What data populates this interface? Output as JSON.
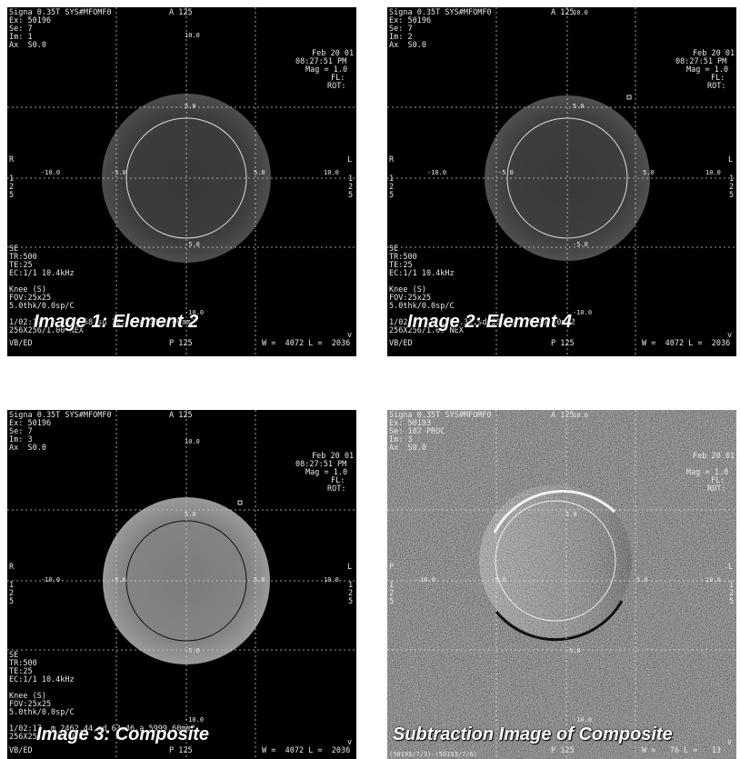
{
  "panels": [
    {
      "caption": "Image 1: Element 2",
      "line1": "Signa 0.35T SYS#MFOMF0",
      "exam": "Ex: 50196",
      "series": "Se: 7",
      "image_no": "Im: 1",
      "axial": "Ax  S0.0",
      "top_marker": "A 125",
      "date": "Feb 20 01",
      "time": "08:27:51 PM",
      "mag": "Mag = 1.0",
      "fl": "FL:",
      "rot": "ROT:",
      "left_marker": "R",
      "right_marker": "L",
      "seq": "SE",
      "tr": "TR:500",
      "te": "TE:25",
      "ec": "EC:1/1 10.4kHz",
      "coil": "Knee (S)",
      "fov": "FOV:25x25",
      "thk": "5.0thk/0.0sp/C",
      "roi": "1/02:17  m 1572.58,sd 32.80,a 5999.60mm2",
      "matrix": "256X256/1.00 NEX",
      "vb": "VB/ED",
      "bottom_marker": "P 125",
      "wl": "W =  4072 L =  2036",
      "scale_top": "10.0",
      "scale_inner_top": "5.0",
      "scale_left": "-10.0",
      "scale_left_inner": "-5.0",
      "scale_right_inner": "5.0",
      "scale_right": "10.0",
      "scale_bottom_inner": "-5.0",
      "scale_bottom": "-10.0",
      "side_left": "125",
      "side_right": "125",
      "v_mark": "v"
    },
    {
      "caption": "Image 2: Element 4",
      "line1": "Signa 0.35T SYS#MFOMF0",
      "exam": "Ex: 50196",
      "series": "Se: 7",
      "image_no": "Im: 2",
      "axial": "Ax  S0.0",
      "top_marker": "A 125",
      "date": "Feb 20 01",
      "time": "08:27:51 PM",
      "mag": "Mag = 1.0",
      "fl": "FL:",
      "rot": "ROT:",
      "left_marker": "R",
      "right_marker": "L",
      "seq": "SE",
      "tr": "TR:500",
      "te": "TE:25",
      "ec": "EC:1/1 10.4kHz",
      "coil": "Knee (S)",
      "fov": "FOV:25x25",
      "thk": "5.0thk/0.0sp/C",
      "roi": "1/02:17  m 1893.31,sd 28.18,a 5999.60mm2",
      "matrix": "256X256/1.00 NEX",
      "vb": "VB/ED",
      "bottom_marker": "P 125",
      "wl": "W =  4072 L =  2036",
      "scale_top": "10.0",
      "scale_inner_top": "5.0",
      "scale_left": "-10.0",
      "scale_left_inner": "-5.0",
      "scale_right_inner": "5.0",
      "scale_right": "10.0",
      "scale_bottom_inner": "-5.0",
      "scale_bottom": "-10.0",
      "side_left": "125",
      "side_right": "125",
      "v_mark": "v"
    },
    {
      "caption": "Image 3: Composite",
      "line1": "Signa 0.35T SYS#MFOMF0",
      "exam": "Ex: 50196",
      "series": "Se: 7",
      "image_no": "Im: 3",
      "axial": "Ax  S0.0",
      "top_marker": "A 125",
      "date": "Feb 20 01",
      "time": "08:27:51 PM",
      "mag": "Mag = 1.0",
      "fl": "FL:",
      "rot": "ROT:",
      "left_marker": "R",
      "right_marker": "L",
      "seq": "SE",
      "tr": "TR:500",
      "te": "TE:25",
      "ec": "EC:1/1 10.4kHz",
      "coil": "Knee (S)",
      "fov": "FOV:25x25",
      "thk": "5.0thk/0.0sp/C",
      "roi": "1/02:17  m 2462.44,sd 63.46,a 5999.60mm2",
      "matrix": "256X256/1.00 NEX",
      "vb": "VB/ED",
      "bottom_marker": "P 125",
      "wl": "W =  4072 L =  2036",
      "scale_top": "10.0",
      "scale_inner_top": "5.0",
      "scale_left": "-10.0",
      "scale_left_inner": "-5.0",
      "scale_right_inner": "5.0",
      "scale_right": "10.0",
      "scale_bottom_inner": "-5.0",
      "scale_bottom": "-10.0",
      "side_left": "125",
      "side_right": "125",
      "v_mark": "v"
    },
    {
      "caption": "Subtraction Image of Composite",
      "line1": "Signa 0.35T SYS#MFOMF0",
      "exam": "Ex: 50193",
      "series": "Se: 107 PROC",
      "image_no": "Im: 3",
      "axial": "Ax  S0.0",
      "top_marker": "A 125",
      "date": "Feb 20 01",
      "time": "",
      "mag": "Mag = 1.0",
      "fl": "FL:",
      "rot": "ROT:",
      "left_marker": "P",
      "right_marker": "L",
      "seq": "",
      "tr": "",
      "te": "",
      "ec": "",
      "coil": "",
      "fov": "",
      "thk": "",
      "roi": "",
      "matrix": "",
      "vb": "(50193/7/3)-(50193/7/6)",
      "bottom_marker": "P 125",
      "wl": "W =   76 L =   13",
      "scale_top": "10.0",
      "scale_inner_top": "5.0",
      "scale_left": "-10.0",
      "scale_left_inner": "-5.0",
      "scale_right_inner": "5.0",
      "scale_right": "10.0",
      "scale_bottom_inner": "-5.0",
      "scale_bottom": "-10.0",
      "side_left": "125",
      "side_right": "125",
      "v_mark": "v"
    }
  ],
  "colors": {
    "background": "#ffffff",
    "panel_bg": "#000000",
    "phantom_dim": "#4a4a4a",
    "phantom_bright": "#8f8f8f",
    "noise_bg": "#6b6b6b",
    "overlay_text": "#e8e8e8"
  }
}
